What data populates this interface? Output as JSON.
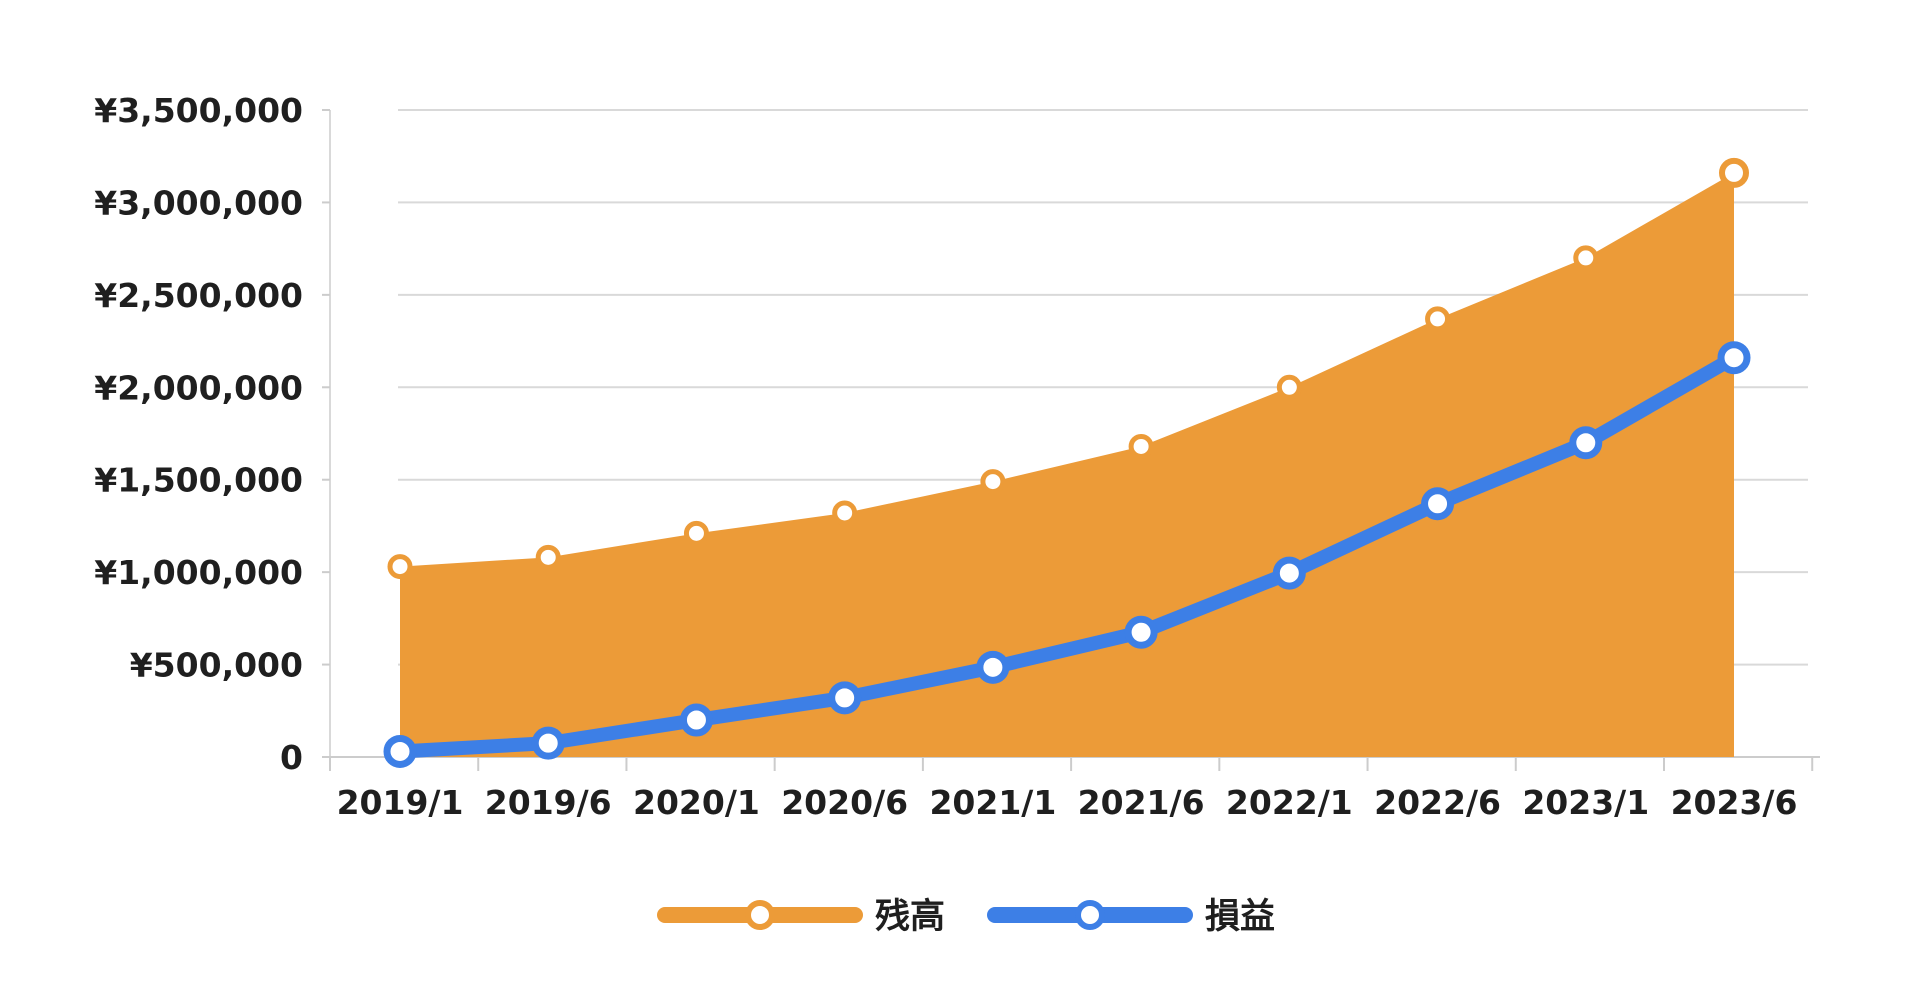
{
  "chart_data": {
    "type": "area",
    "title": "",
    "xlabel": "",
    "ylabel": "",
    "categories": [
      "2019/1",
      "2019/6",
      "2020/1",
      "2020/6",
      "2021/1",
      "2021/6",
      "2022/1",
      "2022/6",
      "2023/1",
      "2023/6"
    ],
    "ylim": [
      0,
      3500000
    ],
    "yticks": [
      0,
      500000,
      1000000,
      1500000,
      2000000,
      2500000,
      3000000,
      3500000
    ],
    "ytick_labels": [
      "0",
      "¥500,000",
      "¥1,000,000",
      "¥1,500,000",
      "¥2,000,000",
      "¥2,500,000",
      "¥3,000,000",
      "¥3,500,000"
    ],
    "grid": true,
    "legend_position": "bottom",
    "series": [
      {
        "name": "残高",
        "render": "area",
        "color": "#EC9B38",
        "values": [
          1030000,
          1080000,
          1210000,
          1320000,
          1490000,
          1680000,
          2000000,
          2370000,
          2700000,
          3160000
        ]
      },
      {
        "name": "損益",
        "render": "line",
        "color": "#3D7FE6",
        "values": [
          30000,
          75000,
          200000,
          320000,
          485000,
          675000,
          995000,
          1370000,
          1700000,
          2160000
        ]
      }
    ]
  }
}
